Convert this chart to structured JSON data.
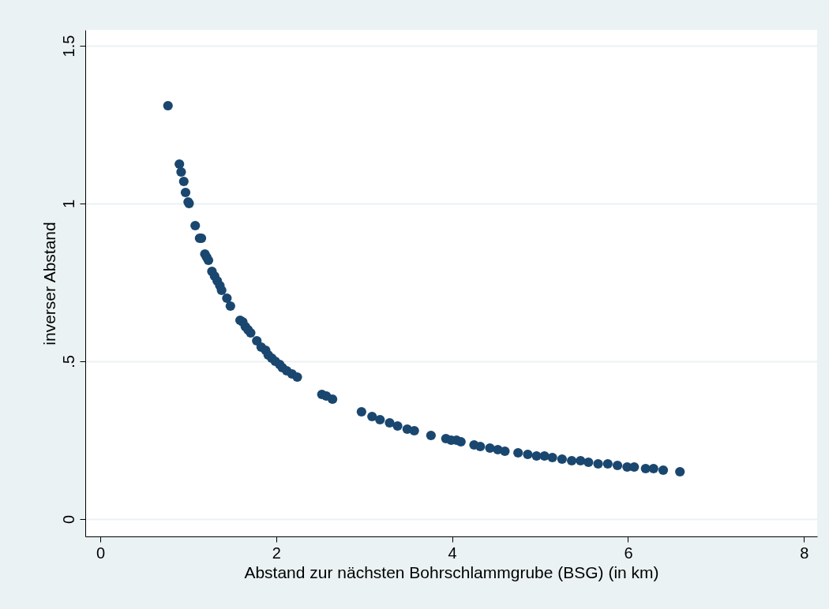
{
  "chart_data": {
    "type": "scatter",
    "xlabel": "Abstand zur nächsten Bohrschlammgrube (BSG) (in km)",
    "ylabel": "inverser Abstand",
    "x": [
      0.77,
      0.9,
      0.92,
      0.95,
      0.97,
      1.0,
      1.01,
      1.08,
      1.13,
      1.15,
      1.19,
      1.21,
      1.23,
      1.27,
      1.3,
      1.33,
      1.36,
      1.38,
      1.44,
      1.48,
      1.59,
      1.62,
      1.65,
      1.68,
      1.71,
      1.78,
      1.83,
      1.88,
      1.91,
      1.95,
      1.99,
      2.04,
      2.07,
      2.12,
      2.18,
      2.24,
      2.52,
      2.57,
      2.64,
      2.97,
      3.09,
      3.18,
      3.29,
      3.38,
      3.49,
      3.57,
      3.76,
      3.93,
      3.99,
      4.05,
      4.1,
      4.25,
      4.32,
      4.43,
      4.52,
      4.6,
      4.75,
      4.86,
      4.96,
      5.05,
      5.14,
      5.25,
      5.36,
      5.46,
      5.55,
      5.66,
      5.77,
      5.88,
      5.99,
      6.07,
      6.2,
      6.29,
      6.4,
      6.59
    ],
    "series": [
      {
        "color": "#1a476f",
        "values": [
          1.31,
          1.125,
          1.1,
          1.07,
          1.035,
          1.005,
          1.0,
          0.93,
          0.89,
          0.89,
          0.84,
          0.83,
          0.82,
          0.785,
          0.77,
          0.755,
          0.74,
          0.725,
          0.7,
          0.675,
          0.63,
          0.625,
          0.61,
          0.6,
          0.59,
          0.565,
          0.545,
          0.535,
          0.52,
          0.51,
          0.5,
          0.49,
          0.48,
          0.47,
          0.46,
          0.45,
          0.395,
          0.39,
          0.38,
          0.34,
          0.325,
          0.315,
          0.305,
          0.295,
          0.285,
          0.28,
          0.265,
          0.255,
          0.25,
          0.25,
          0.245,
          0.235,
          0.23,
          0.225,
          0.22,
          0.215,
          0.21,
          0.205,
          0.2,
          0.2,
          0.195,
          0.19,
          0.185,
          0.185,
          0.18,
          0.175,
          0.175,
          0.17,
          0.165,
          0.165,
          0.16,
          0.16,
          0.155,
          0.15
        ]
      }
    ],
    "xlim": [
      -0.17,
      8.15
    ],
    "xticks": [
      0,
      2,
      4,
      6,
      8
    ],
    "ylim": [
      -0.055,
      1.55
    ],
    "yticks": [
      0,
      {
        "value": 0.5,
        "label": ".5"
      },
      1,
      1.5
    ],
    "grid": "y",
    "marker": "circle"
  }
}
